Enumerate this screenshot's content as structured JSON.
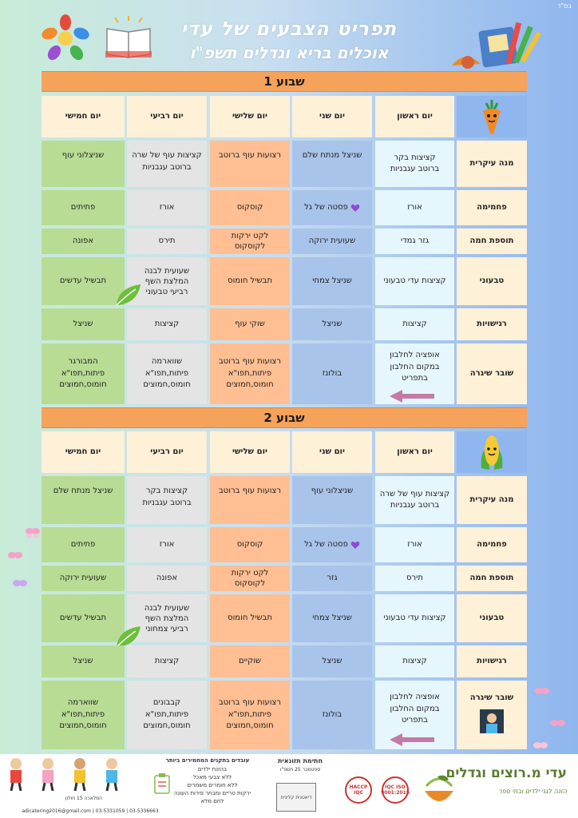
{
  "corner_label": "בס\"ד",
  "title": "תפריט הצבעים של עדי",
  "subtitle": "אוכלים בריא וגדלים תשפ\"ו",
  "weeks": [
    {
      "label": "שבוע 1",
      "days": [
        "יום ראשון",
        "יום שני",
        "יום שלישי",
        "יום רביעי",
        "יום חמישי"
      ],
      "rows": [
        {
          "label": "מנה עיקרית",
          "cells": [
            "קציצות בקר\nברוטב עגבניות",
            "שניצל מנתח שלם",
            "רצועות עוף ברוטב",
            "קציצות עוף של שרה\nברוטב עגבניות",
            "שניצלוני עוף"
          ]
        },
        {
          "label": "פחמימה",
          "cells": [
            "אורז",
            "פסטה של גל",
            "קוסקוס",
            "אורז",
            "פתיתים"
          ]
        },
        {
          "label": "תוספת חמה",
          "cells": [
            "גזר גמדי",
            "שעועית ירוקה",
            "לקט ירקות\nלקוסקוס",
            "תירס",
            "אפונה"
          ]
        },
        {
          "label": "טבעוני",
          "cells": [
            "קציצות עדי טבעוני",
            "שניצל צמחי",
            "תבשיל חומוס",
            "שעועית לבנה\nהמלצת השף\nרביעי טבעוני",
            "תבשיל עדשים"
          ]
        },
        {
          "label": "רגישויות",
          "cells": [
            "קציצות",
            "שניצל",
            "שוקי עוף",
            "קציצות",
            "שניצל"
          ]
        },
        {
          "label": "שובר שיגרה",
          "cells": [
            "אופציה לחלבון\nבמקום החלבון\nבתפריט",
            "בולונז",
            "רצועות עוף ברוטב\nפיתות,תפו\"א\nחומוס,חמוצים",
            "שווארמה\nפיתות,תפו\"א\nחומוס,חמוצים",
            "המבורגר\nפיתות,תפו\"א\nחומוס,חמוצים"
          ]
        }
      ]
    },
    {
      "label": "שבוע 2",
      "days": [
        "יום ראשון",
        "יום שני",
        "יום שלישי",
        "יום רביעי",
        "יום חמישי"
      ],
      "rows": [
        {
          "label": "מנה עיקרית",
          "cells": [
            "קציצות עוף של שרה\nברוטב עגבניות",
            "שניצלוני עוף",
            "רצועות עוף ברוטב",
            "קציצות בקר\nברוטב עגבניות",
            "שניצל מנתח שלם"
          ]
        },
        {
          "label": "פחמימה",
          "cells": [
            "אורז",
            "פסטה של גל",
            "קוסקוס",
            "אורז",
            "פתיתים"
          ]
        },
        {
          "label": "תוספת חמה",
          "cells": [
            "תירס",
            "גזר",
            "לקט ירקות\nלקוסקוס",
            "אפונה",
            "שעועית ירוקה"
          ]
        },
        {
          "label": "טבעוני",
          "cells": [
            "קציצות עדי טבעוני",
            "שניצל צמחי",
            "תבשיל חומוס",
            "שעועית לבנה\nהמלצת השף\nרביעי צמחוני",
            "תבשיל עדשים"
          ]
        },
        {
          "label": "רגישויות",
          "cells": [
            "קציצות",
            "שניצל",
            "שוקיים",
            "קציצות",
            "שניצל"
          ]
        },
        {
          "label": "שובר שיגרה",
          "cells": [
            "אופציה לחלבון\nבמקום החלבון\nבתפריט",
            "בולונז",
            "רצועות עוף ברוטב\nפיתות,תפו\"א\nחומוס,חמוצים",
            "קבבונים\nפיתות,תפו\"א\nחומוס,חמוצים",
            "שווארמה\nפיתות,תפו\"א\nחומוס,חמוצים"
          ]
        }
      ]
    }
  ],
  "footer": {
    "brand_name": "עדי מ.רוצים וגדלים",
    "brand_sub": "הזנה לגני ילדים ובתי ספר",
    "cert1": "IQC ISO 9001:2015",
    "cert2": "HACCP IQC",
    "signature_title": "חתימת תזונאית",
    "signature_date": "ספטמבר 25 תשפ\"ו",
    "stamp_text": "דיאטנית קלינית",
    "standards_title": "עובדים בתקנים המחמירים ביותר",
    "standards_lines": [
      "בהזנת ילדים",
      "ללא צבעי מאכל",
      "ללא חומרים משמרים",
      "ירקות טריים ומבחר פירות העונה",
      "לחם מלא"
    ],
    "address": "המלאכה 15 חולון",
    "contact": "adicatering2016@gmail.com | 03-5331059 | 03-5336663"
  },
  "colors": {
    "orange_bar": "#f5a25a",
    "day1": "#e6f6fd",
    "day2": "#a9c4ea",
    "day3": "#ffbf92",
    "day4": "#e4e4e4",
    "day5": "#b9dc95",
    "label": "#fff0d8"
  }
}
